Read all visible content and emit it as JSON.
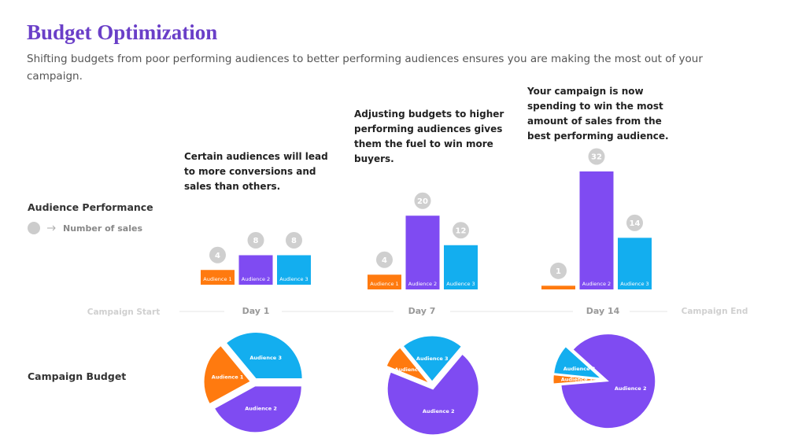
{
  "header": {
    "title": "Budget Optimization",
    "subtitle": "Shifting budgets from poor performing audiences to better performing audiences ensures you are making the most out of your campaign."
  },
  "sections": {
    "performance": "Audience Performance",
    "legend": "Number of sales",
    "budget": "Campaign Budget"
  },
  "timeline": {
    "start": "Campaign Start",
    "end": "Campaign End"
  },
  "chart_data": [
    {
      "type": "bar",
      "title": "Day 1",
      "annotation": [
        "Certain audiences will lead",
        "to more conversions and",
        "sales than others."
      ],
      "categories": [
        "Audience 1",
        "Audience 2",
        "Audience 3"
      ],
      "values": [
        4,
        8,
        8
      ],
      "colors": [
        "#ff7a0f",
        "#7f4bf2",
        "#13aeef"
      ]
    },
    {
      "type": "bar",
      "title": "Day 7",
      "annotation": [
        "Adjusting budgets to higher",
        "performing audiences gives",
        "them the fuel to win more",
        "buyers."
      ],
      "categories": [
        "Audience 1",
        "Audience 2",
        "Audience 3"
      ],
      "values": [
        4,
        20,
        12
      ],
      "colors": [
        "#ff7a0f",
        "#7f4bf2",
        "#13aeef"
      ]
    },
    {
      "type": "bar",
      "title": "Day 14",
      "annotation": [
        "Your campaign is now",
        "spending to win the most",
        "amount of sales from the",
        "best performing audience."
      ],
      "categories": [
        "Audience 1",
        "Audience 2",
        "Audience 3"
      ],
      "values": [
        1,
        32,
        14
      ],
      "colors": [
        "#ff7a0f",
        "#7f4bf2",
        "#13aeef"
      ]
    },
    {
      "type": "pie",
      "categories": [
        "Audience 1",
        "Audience 2",
        "Audience 3"
      ],
      "values": [
        22,
        42,
        36
      ],
      "colors": [
        "#ff7a0f",
        "#7f4bf2",
        "#13aeef"
      ]
    },
    {
      "type": "pie",
      "categories": [
        "Audience 1",
        "Audience 2",
        "Audience 3"
      ],
      "values": [
        8,
        70,
        22
      ],
      "colors": [
        "#ff7a0f",
        "#7f4bf2",
        "#13aeef"
      ]
    },
    {
      "type": "pie",
      "categories": [
        "Audience 1",
        "Audience 2",
        "Audience 3"
      ],
      "values": [
        3,
        87,
        10
      ],
      "colors": [
        "#ff7a0f",
        "#7f4bf2",
        "#13aeef"
      ]
    }
  ]
}
